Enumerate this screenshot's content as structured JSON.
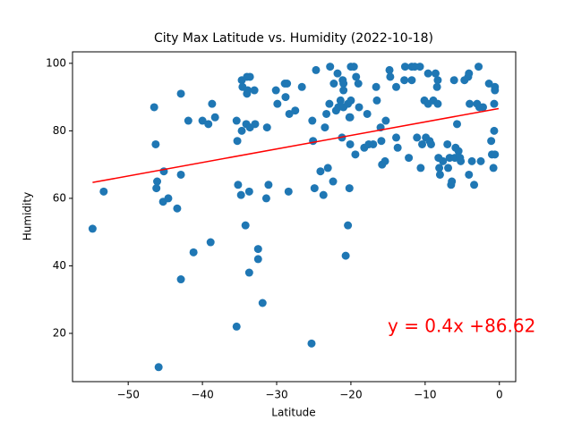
{
  "chart_data": {
    "type": "scatter",
    "title": "City Max Latitude vs. Humidity (2022-10-18)",
    "x_label": "Latitude",
    "y_label": "Humidity",
    "xlim": [
      -57.5,
      2.2
    ],
    "ylim": [
      5.7,
      103.4
    ],
    "xticks": [
      {
        "value": -50,
        "label": "−50"
      },
      {
        "value": -40,
        "label": "−40"
      },
      {
        "value": -30,
        "label": "−30"
      },
      {
        "value": -20,
        "label": "−20"
      },
      {
        "value": -10,
        "label": "−10"
      },
      0
    ],
    "yticks": [
      20,
      40,
      60,
      80,
      100
    ],
    "series": [
      {
        "color": "#1f77b4",
        "x": [
          -54.8,
          -53.3,
          -46.5,
          -46.3,
          -46.1,
          -46.2,
          -45.9,
          -45.3,
          -45.2,
          -44.6,
          -43.4,
          -42.9,
          -42.9,
          -42.9,
          -41.9,
          -41.2,
          -40.0,
          -39.2,
          -38.9,
          -38.7,
          -38.3,
          -35.4,
          -35.4,
          -35.3,
          -35.2,
          -34.7,
          -34.8,
          -34.7,
          -34.6,
          -34.2,
          -34.1,
          -34.0,
          -33.9,
          -34.0,
          -33.7,
          -33.7,
          -33.6,
          -33.6,
          -33.0,
          -32.9,
          -32.5,
          -32.5,
          -31.9,
          -31.4,
          -31.3,
          -31.1,
          -30.1,
          -29.9,
          -28.9,
          -28.8,
          -28.6,
          -28.4,
          -28.3,
          -27.5,
          -26.6,
          -25.3,
          -25.2,
          -25.1,
          -24.9,
          -24.7,
          -24.1,
          -23.7,
          -23.5,
          -23.3,
          -23.1,
          -22.9,
          -22.8,
          -22.4,
          -22.3,
          -22.0,
          -21.8,
          -21.7,
          -21.4,
          -21.2,
          -21.1,
          -21.0,
          -21.0,
          -21.0,
          -20.7,
          -20.4,
          -20.4,
          -20.2,
          -20.2,
          -20.1,
          -20.1,
          -20.0,
          -20.0,
          -19.6,
          -19.4,
          -19.3,
          -19.0,
          -18.9,
          -18.2,
          -17.8,
          -17.6,
          -17.0,
          -16.6,
          -16.5,
          -16.0,
          -15.9,
          -15.8,
          -15.4,
          -15.3,
          -14.8,
          -14.7,
          -13.9,
          -13.9,
          -13.7,
          -12.8,
          -12.7,
          -12.2,
          -11.8,
          -11.8,
          -11.4,
          -11.1,
          -10.7,
          -10.6,
          -10.4,
          -10.1,
          -9.9,
          -9.6,
          -9.6,
          -9.4,
          -9.2,
          -8.9,
          -8.6,
          -8.4,
          -8.3,
          -8.3,
          -8.2,
          -8.1,
          -8.0,
          -7.6,
          -7.0,
          -6.9,
          -6.7,
          -6.5,
          -6.4,
          -6.1,
          -6.0,
          -5.9,
          -5.7,
          -5.5,
          -5.3,
          -5.2,
          -4.7,
          -4.2,
          -4.1,
          -4.1,
          -4.0,
          -3.7,
          -3.4,
          -3.0,
          -2.8,
          -2.7,
          -2.5,
          -2.2,
          -1.4,
          -1.1,
          -1.0,
          -0.8,
          -0.7,
          -0.7,
          -0.6,
          -0.6,
          -0.6
        ],
        "values": [
          51,
          62,
          87,
          76,
          65,
          63,
          10,
          59,
          68,
          60,
          57,
          91,
          67,
          36,
          83,
          44,
          83,
          82,
          47,
          88,
          84,
          22,
          83,
          77,
          64,
          80,
          61,
          95,
          93,
          52,
          82,
          96,
          92,
          91,
          62,
          38,
          96,
          81,
          92,
          82,
          45,
          42,
          29,
          60,
          81,
          64,
          92,
          88,
          94,
          90,
          94,
          62,
          85,
          86,
          93,
          17,
          83,
          77,
          63,
          98,
          68,
          61,
          81,
          85,
          69,
          88,
          99,
          65,
          94,
          86,
          97,
          87,
          89,
          78,
          95,
          94,
          92,
          87,
          43,
          52,
          88,
          63,
          84,
          76,
          84,
          89,
          99,
          99,
          73,
          96,
          94,
          87,
          75,
          85,
          76,
          76,
          93,
          89,
          81,
          77,
          70,
          71,
          83,
          98,
          96,
          93,
          78,
          75,
          95,
          99,
          72,
          95,
          99,
          99,
          78,
          99,
          69,
          76,
          89,
          78,
          88,
          97,
          77,
          76,
          89,
          97,
          93,
          95,
          88,
          72,
          69,
          67,
          71,
          76,
          69,
          72,
          64,
          65,
          95,
          72,
          75,
          82,
          74,
          72,
          71,
          95,
          96,
          97,
          67,
          88,
          71,
          64,
          88,
          99,
          87,
          71,
          87,
          94,
          77,
          73,
          69,
          88,
          80,
          93,
          92,
          73
        ]
      }
    ],
    "regression": {
      "color": "#ff0000",
      "x": [
        -54.8,
        -0.1
      ],
      "y": [
        64.7,
        86.6
      ]
    },
    "annotation": "y = 0.4x +86.62"
  }
}
